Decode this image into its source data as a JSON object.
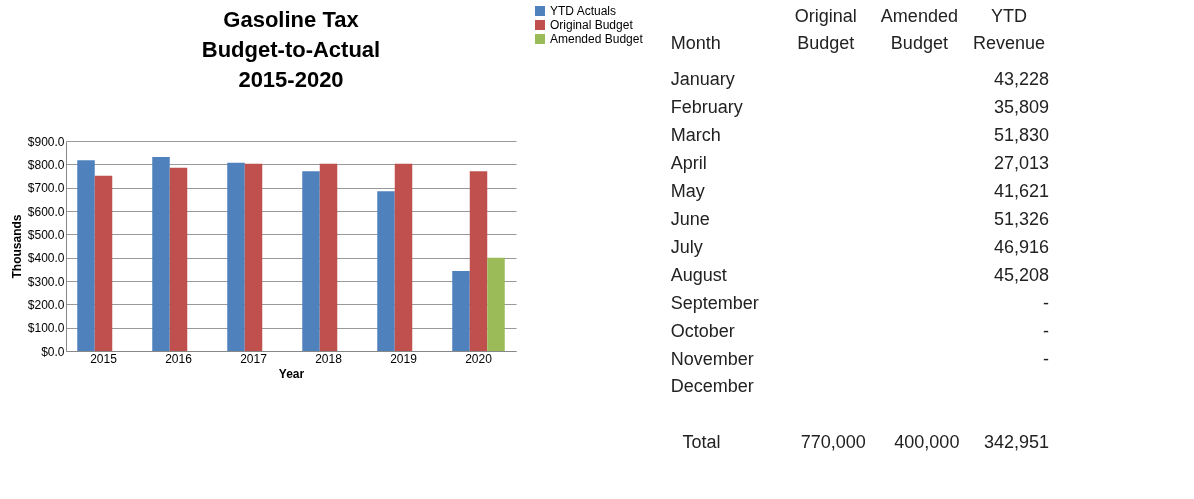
{
  "chart_data": [
    {
      "type": "bar",
      "title": [
        "Gasoline Tax",
        "Budget-to-Actual",
        "2015-2020"
      ],
      "xlabel": "Year",
      "ylabel": "Thousands",
      "categories": [
        "2015",
        "2016",
        "2017",
        "2018",
        "2019",
        "2020"
      ],
      "series": [
        {
          "name": "YTD Actuals",
          "color": "#4f81bd",
          "values": [
            817,
            831,
            807,
            770,
            685,
            343
          ]
        },
        {
          "name": "Original Budget",
          "color": "#c0504d",
          "values": [
            751,
            785,
            802,
            802,
            802,
            770
          ]
        },
        {
          "name": "Amended Budget",
          "color": "#9bbb59",
          "values": [
            null,
            null,
            null,
            null,
            null,
            400
          ]
        }
      ],
      "ylim": [
        0,
        900
      ],
      "yticks": [
        {
          "value": 0,
          "label": "$0.0"
        },
        {
          "value": 100,
          "label": "$100.0"
        },
        {
          "value": 200,
          "label": "$200.0"
        },
        {
          "value": 300,
          "label": "$300.0"
        },
        {
          "value": 400,
          "label": "$400.0"
        },
        {
          "value": 500,
          "label": "$500.0"
        },
        {
          "value": 600,
          "label": "$600.0"
        },
        {
          "value": 700,
          "label": "$700.0"
        },
        {
          "value": 800,
          "label": "$800.0"
        },
        {
          "value": 900,
          "label": "$900.0"
        }
      ],
      "grid": "y",
      "legend": "right"
    },
    {
      "type": "other",
      "categories": [
        "Month",
        "Original Budget",
        "Amended Budget",
        "YTD Revenue"
      ],
      "y_categories": [
        "January",
        "February",
        "March",
        "April",
        "May",
        "June",
        "July",
        "August",
        "September",
        "October",
        "November",
        "December",
        "Total"
      ],
      "cell_labels": [
        [
          null,
          null,
          "43,228"
        ],
        [
          null,
          null,
          "35,809"
        ],
        [
          null,
          null,
          "51,830"
        ],
        [
          null,
          null,
          "27,013"
        ],
        [
          null,
          null,
          "41,621"
        ],
        [
          null,
          null,
          "51,326"
        ],
        [
          null,
          null,
          "46,916"
        ],
        [
          null,
          null,
          "45,208"
        ],
        [
          null,
          null,
          "-"
        ],
        [
          null,
          null,
          "-"
        ],
        [
          null,
          null,
          "-"
        ],
        [
          null,
          null,
          null
        ],
        [
          "770,000",
          "400,000",
          "342,951"
        ]
      ]
    }
  ]
}
